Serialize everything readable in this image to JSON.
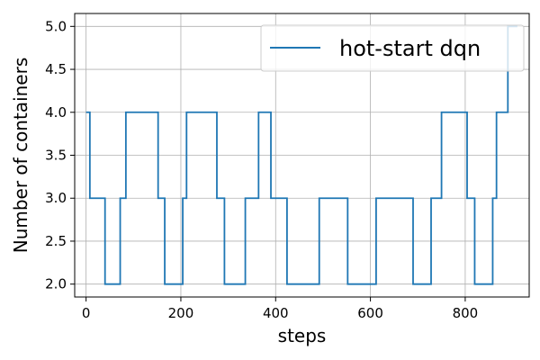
{
  "chart_data": {
    "type": "line",
    "xlabel": "steps",
    "ylabel": "Number of containers",
    "xlim": [
      -24,
      935
    ],
    "ylim": [
      1.85,
      5.15
    ],
    "xticks": [
      0,
      200,
      400,
      600,
      800
    ],
    "xtick_labels": [
      "0",
      "200",
      "400",
      "600",
      "800"
    ],
    "yticks": [
      2.0,
      2.5,
      3.0,
      3.5,
      4.0,
      4.5,
      5.0
    ],
    "ytick_labels": [
      "2.0",
      "2.5",
      "3.0",
      "3.5",
      "4.0",
      "4.5",
      "5.0"
    ],
    "grid": true,
    "legend_position": "top-right",
    "series": [
      {
        "name": "hot-start dqn",
        "color": "#1f77b4",
        "step": true,
        "x": [
          0,
          8,
          40,
          72,
          84,
          152,
          166,
          204,
          212,
          276,
          292,
          336,
          364,
          390,
          424,
          492,
          552,
          612,
          690,
          728,
          750,
          804,
          820,
          858,
          866,
          890,
          910
        ],
        "y": [
          4,
          3,
          2,
          3,
          4,
          3,
          2,
          3,
          4,
          3,
          2,
          3,
          4,
          3,
          2,
          3,
          2,
          3,
          2,
          3,
          4,
          3,
          2,
          3,
          4,
          5,
          5
        ]
      }
    ]
  }
}
